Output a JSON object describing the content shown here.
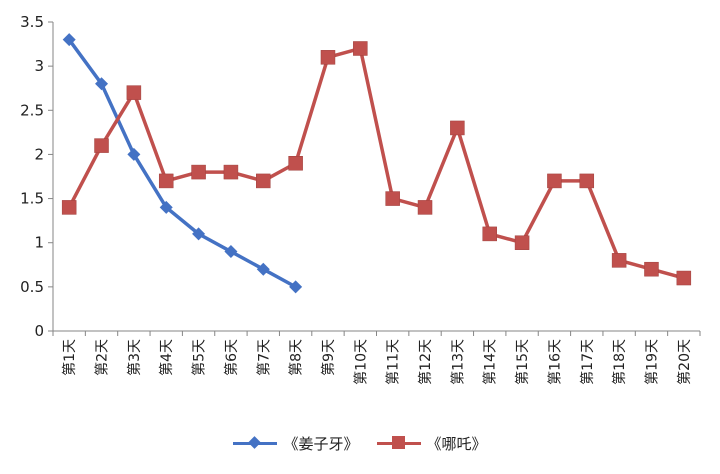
{
  "chart_data": {
    "type": "line",
    "categories": [
      "第1天",
      "第2天",
      "第3天",
      "第4天",
      "第5天",
      "第6天",
      "第7天",
      "第8天",
      "第9天",
      "第10天",
      "第11天",
      "第12天",
      "第13天",
      "第14天",
      "第15天",
      "第16天",
      "第17天",
      "第18天",
      "第19天",
      "第20天"
    ],
    "series": [
      {
        "name": "《姜子牙》",
        "color": "#4472C4",
        "marker": "diamond",
        "values": [
          3.3,
          2.8,
          2.0,
          1.4,
          1.1,
          0.9,
          0.7,
          0.5,
          null,
          null,
          null,
          null,
          null,
          null,
          null,
          null,
          null,
          null,
          null,
          null
        ]
      },
      {
        "name": "《哪吒》",
        "color": "#C0504D",
        "marker": "square",
        "values": [
          1.4,
          2.1,
          2.7,
          1.7,
          1.8,
          1.8,
          1.7,
          1.9,
          3.1,
          3.2,
          1.5,
          1.4,
          2.3,
          1.1,
          1.0,
          1.7,
          1.7,
          0.8,
          0.7,
          0.6
        ]
      }
    ],
    "yticks": [
      "0",
      "0.5",
      "1",
      "1.5",
      "2",
      "2.5",
      "3",
      "3.5"
    ],
    "ylim": [
      0,
      3.5
    ],
    "grid": false,
    "legend": "bottom"
  }
}
